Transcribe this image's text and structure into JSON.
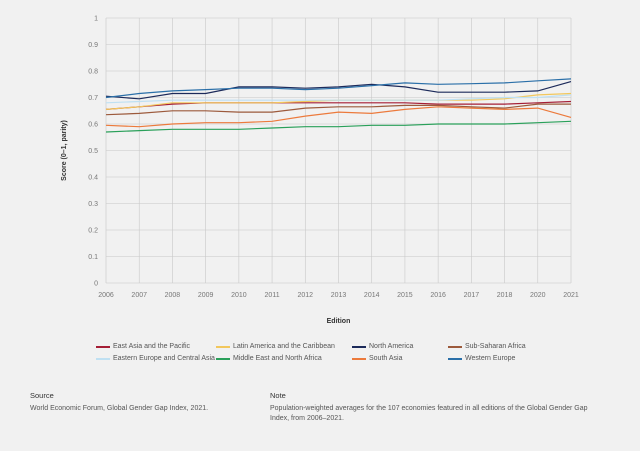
{
  "chart_data": {
    "type": "line",
    "title": "",
    "xlabel": "Edition",
    "ylabel": "Score (0–1, parity)",
    "ylim": [
      0,
      1
    ],
    "yticks": [
      "0",
      "0.1",
      "0.2",
      "0.3",
      "0.4",
      "0.5",
      "0.6",
      "0.7",
      "0.8",
      "0.9",
      "1"
    ],
    "categories": [
      "2006",
      "2007",
      "2008",
      "2009",
      "2010",
      "2011",
      "2012",
      "2013",
      "2014",
      "2015",
      "2016",
      "2017",
      "2018",
      "2020",
      "2021"
    ],
    "grid": true,
    "legend_placement": "bottom",
    "series": [
      {
        "name": "East Asia and the Pacific",
        "color": "#a51e36",
        "values": [
          0.655,
          0.665,
          0.675,
          0.68,
          0.68,
          0.68,
          0.68,
          0.68,
          0.68,
          0.68,
          0.675,
          0.675,
          0.675,
          0.68,
          0.685
        ]
      },
      {
        "name": "Latin America and the Caribbean",
        "color": "#f2c75c",
        "values": [
          0.655,
          0.665,
          0.68,
          0.68,
          0.68,
          0.68,
          0.685,
          0.69,
          0.69,
          0.69,
          0.69,
          0.69,
          0.695,
          0.71,
          0.715
        ]
      },
      {
        "name": "North America",
        "color": "#1c2a5a",
        "values": [
          0.705,
          0.695,
          0.715,
          0.715,
          0.74,
          0.74,
          0.735,
          0.74,
          0.75,
          0.74,
          0.72,
          0.72,
          0.72,
          0.725,
          0.76
        ]
      },
      {
        "name": "Sub-Saharan Africa",
        "color": "#9c5a3c",
        "values": [
          0.635,
          0.64,
          0.65,
          0.65,
          0.645,
          0.645,
          0.66,
          0.665,
          0.665,
          0.67,
          0.67,
          0.665,
          0.66,
          0.675,
          0.675
        ]
      },
      {
        "name": "Eastern Europe and Central Asia",
        "color": "#bfe0f2",
        "values": [
          0.68,
          0.685,
          0.69,
          0.69,
          0.69,
          0.69,
          0.69,
          0.69,
          0.69,
          0.69,
          0.69,
          0.695,
          0.7,
          0.7,
          0.71
        ]
      },
      {
        "name": "Middle East and North Africa",
        "color": "#2aa05a",
        "values": [
          0.57,
          0.575,
          0.58,
          0.58,
          0.58,
          0.585,
          0.59,
          0.59,
          0.595,
          0.595,
          0.6,
          0.6,
          0.6,
          0.605,
          0.61
        ]
      },
      {
        "name": "South Asia",
        "color": "#ec7a3c",
        "values": [
          0.595,
          0.59,
          0.6,
          0.605,
          0.605,
          0.61,
          0.63,
          0.645,
          0.64,
          0.655,
          0.665,
          0.66,
          0.655,
          0.66,
          0.625
        ]
      },
      {
        "name": "Western Europe",
        "color": "#2a6fa8",
        "values": [
          0.7,
          0.715,
          0.725,
          0.73,
          0.735,
          0.735,
          0.73,
          0.735,
          0.745,
          0.755,
          0.75,
          0.752,
          0.755,
          0.763,
          0.77
        ]
      }
    ]
  },
  "footer": {
    "source_heading": "Source",
    "source_text": "World Economic Forum, Global Gender Gap Index, 2021.",
    "note_heading": "Note",
    "note_text": "Population-weighted averages for the 107 economies featured in all editions of the Global Gender Gap Index, from 2006–2021."
  }
}
